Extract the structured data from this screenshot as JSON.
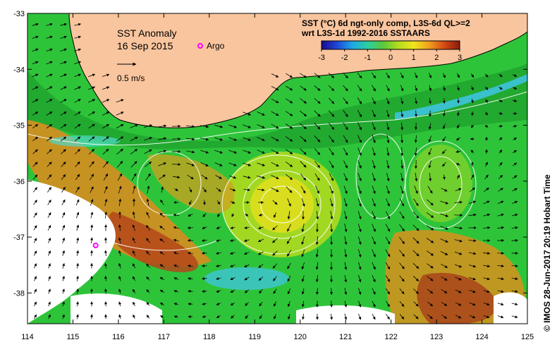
{
  "title": {
    "line1": "SST Anomaly",
    "line2": "16 Sep 2015"
  },
  "legend": {
    "argo_label": "Argo",
    "argo_color": "#ff00ff",
    "scale_label": "0.5 m/s",
    "colorbar_title_1": "SST (°C) 6d ngt-only comp, L3S-6d QL>=2",
    "colorbar_title_2": "wrt L3S-1d 1992-2016 SSTAARS",
    "colorbar_ticks": [
      "-3",
      "-2",
      "-1",
      "0",
      "1",
      "2",
      "3"
    ],
    "colorbar_colors": [
      "#1a0a8c",
      "#1e46d6",
      "#1fa6e6",
      "#2bd0a0",
      "#58c83c",
      "#b6dc1e",
      "#f0e61e",
      "#f0a01e",
      "#d24a14",
      "#8c1a0a"
    ]
  },
  "axes": {
    "x_ticks": [
      "114",
      "115",
      "116",
      "117",
      "118",
      "119",
      "120",
      "121",
      "122",
      "123",
      "124",
      "125"
    ],
    "y_ticks": [
      "-33",
      "-34",
      "-35",
      "-36",
      "-37",
      "-38"
    ],
    "x_range": [
      114,
      125
    ],
    "y_range": [
      -38.55,
      -33
    ]
  },
  "credit": "© IMOS 28-Jun-2017 20:19 Hobart Time",
  "colors": {
    "land": "#f9c59e",
    "ocean_base": "#2ec43a",
    "coastline": "#000000",
    "contour": "#ffffff"
  },
  "argo_float": {
    "lon": 115.5,
    "lat": -37.15
  }
}
